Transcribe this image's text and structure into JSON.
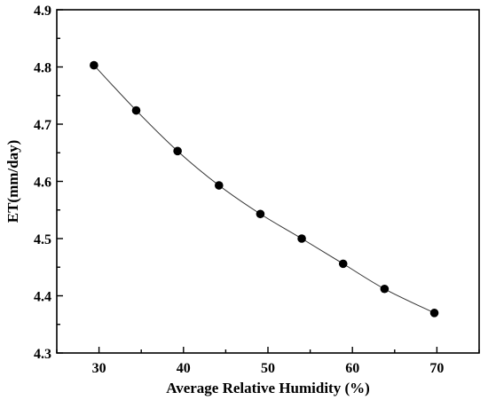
{
  "chart_data": {
    "type": "line",
    "title": "",
    "xlabel": "Average Relative Humidity (%)",
    "ylabel": "ET(mm/day)",
    "xlim": [
      25,
      75
    ],
    "ylim": [
      4.3,
      4.9
    ],
    "x_ticks": [
      30,
      40,
      50,
      60,
      70
    ],
    "y_ticks": [
      4.3,
      4.4,
      4.5,
      4.6,
      4.7,
      4.8,
      4.9
    ],
    "grid": false,
    "legend": "none",
    "marker": "filled-circle",
    "line_style": "smooth",
    "colors": {
      "marker": "#000000",
      "line": "#333333",
      "axis": "#000000"
    },
    "series": [
      {
        "x": [
          29.4,
          34.4,
          39.3,
          44.2,
          49.1,
          54.0,
          58.9,
          63.8,
          69.7
        ],
        "values": [
          4.803,
          4.724,
          4.653,
          4.593,
          4.543,
          4.5,
          4.456,
          4.412,
          4.37
        ]
      }
    ]
  }
}
